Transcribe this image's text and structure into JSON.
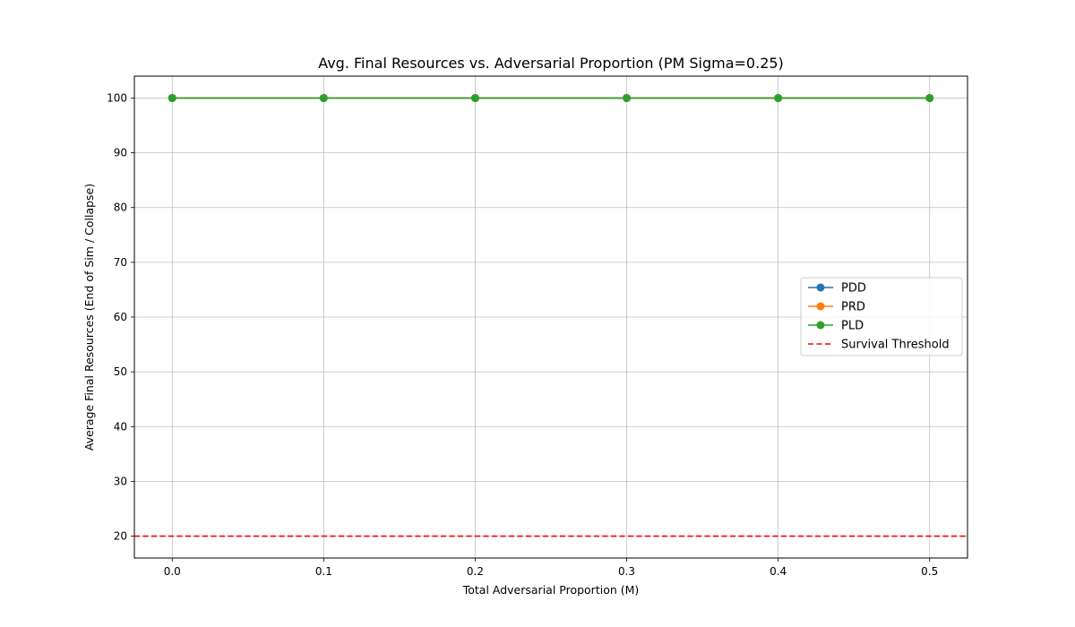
{
  "chart_data": {
    "type": "line",
    "title": "Avg. Final Resources vs. Adversarial Proportion (PM Sigma=0.25)",
    "xlabel": "Total Adversarial Proportion (M)",
    "ylabel": "Average Final Resources (End of Sim / Collapse)",
    "x": [
      0.0,
      0.1,
      0.2,
      0.3,
      0.4,
      0.5
    ],
    "x_tick_labels": [
      "0.0",
      "0.1",
      "0.2",
      "0.3",
      "0.4",
      "0.5"
    ],
    "y_ticks": [
      20,
      30,
      40,
      50,
      60,
      70,
      80,
      90,
      100
    ],
    "xlim": [
      -0.025,
      0.525
    ],
    "ylim": [
      16,
      104
    ],
    "grid": true,
    "legend_position": "center-right",
    "series": [
      {
        "name": "PDD",
        "color": "#1f77b4",
        "marker": "circle",
        "values": [
          100,
          100,
          100,
          100,
          100,
          100
        ]
      },
      {
        "name": "PRD",
        "color": "#ff7f0e",
        "marker": "circle",
        "values": [
          100,
          100,
          100,
          100,
          100,
          100
        ]
      },
      {
        "name": "PLD",
        "color": "#2ca02c",
        "marker": "circle",
        "values": [
          100,
          100,
          100,
          100,
          100,
          100
        ]
      }
    ],
    "threshold": {
      "name": "Survival Threshold",
      "value": 20,
      "color": "#ff0000",
      "style": "dashed"
    }
  }
}
